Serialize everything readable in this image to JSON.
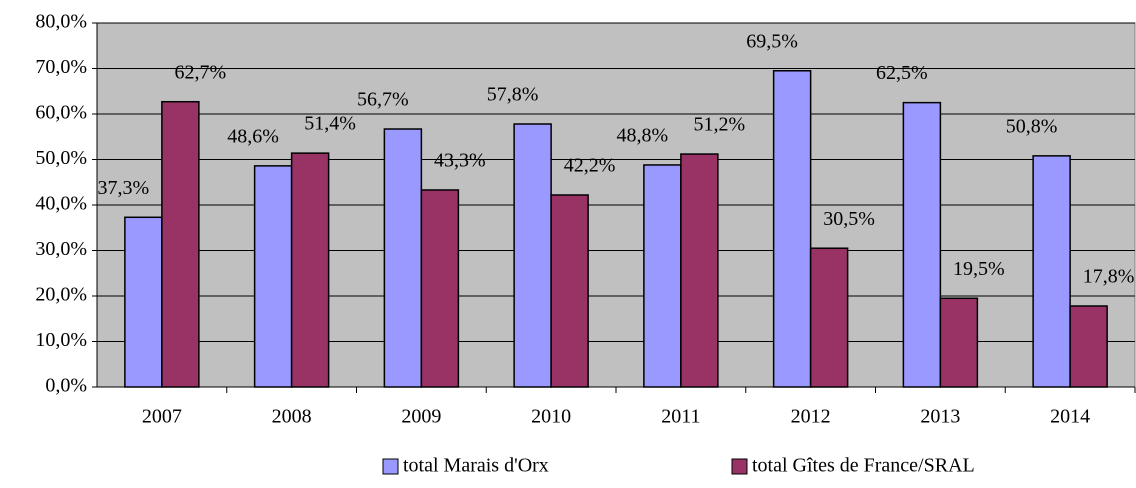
{
  "chart_data": {
    "type": "bar",
    "categories": [
      "2007",
      "2008",
      "2009",
      "2010",
      "2011",
      "2012",
      "2013",
      "2014"
    ],
    "series": [
      {
        "name": "total Marais d'Orx",
        "color": "#9999ff",
        "values": [
          37.3,
          48.6,
          56.7,
          57.8,
          48.8,
          69.5,
          62.5,
          50.8
        ],
        "value_labels": [
          "37,3%",
          "48,6%",
          "56,7%",
          "57,8%",
          "48,8%",
          "69,5%",
          "62,5%",
          "50,8%"
        ]
      },
      {
        "name": "total Gîtes de France/SRAL",
        "color": "#993366",
        "values": [
          62.7,
          51.4,
          43.3,
          42.2,
          51.2,
          30.5,
          19.5,
          17.8
        ],
        "value_labels": [
          "62,7%",
          "51,4%",
          "43,3%",
          "42,2%",
          "51,2%",
          "30,5%",
          "19,5%",
          "17,8%"
        ]
      }
    ],
    "ylim": [
      0,
      80
    ],
    "yticks": [
      {
        "value": 0,
        "label": "0,0%"
      },
      {
        "value": 10,
        "label": "10,0%"
      },
      {
        "value": 20,
        "label": "20,0%"
      },
      {
        "value": 30,
        "label": "30,0%"
      },
      {
        "value": 40,
        "label": "40,0%"
      },
      {
        "value": 50,
        "label": "50,0%"
      },
      {
        "value": 60,
        "label": "60,0%"
      },
      {
        "value": 70,
        "label": "70,0%"
      },
      {
        "value": 80,
        "label": "80,0%"
      }
    ],
    "grid": true,
    "plot_background": "#c0c0c0",
    "legend": "bottom"
  }
}
